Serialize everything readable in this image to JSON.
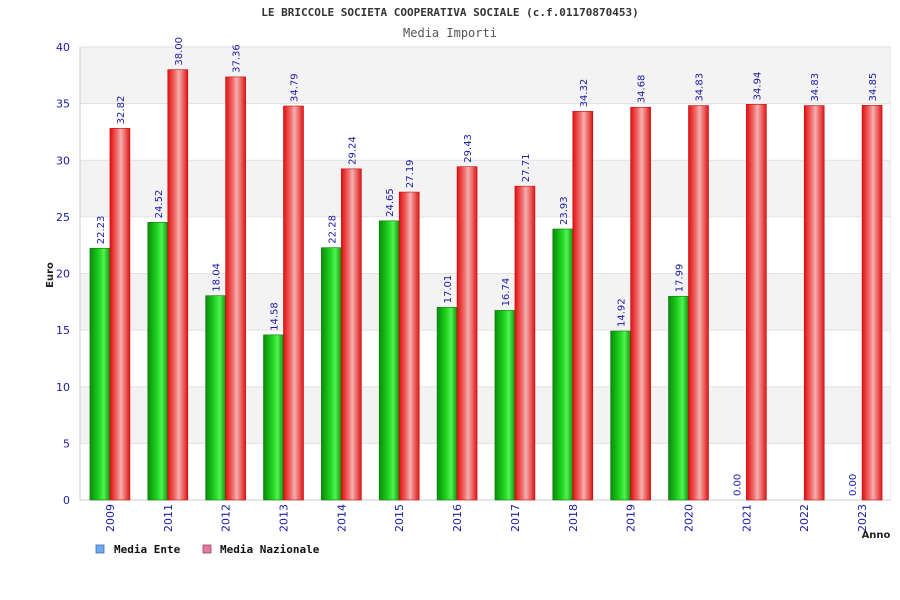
{
  "chart_data": {
    "type": "bar",
    "title": "LE BRICCOLE SOCIETA COOPERATIVA SOCIALE (c.f.01170870453)",
    "subtitle": "Media Importi",
    "xlabel": "Anno",
    "ylabel": "Euro",
    "ylim": [
      0,
      40
    ],
    "yticks": [
      0,
      5,
      10,
      15,
      20,
      25,
      30,
      35,
      40
    ],
    "grid": true,
    "legend_position": "bottom-left",
    "categories": [
      "2009",
      "2011",
      "2012",
      "2013",
      "2014",
      "2015",
      "2016",
      "2017",
      "2018",
      "2019",
      "2020",
      "2021",
      "2022",
      "2023"
    ],
    "series": [
      {
        "name": "Media Ente",
        "legend_color": "#6fa8f0",
        "bar_color": "#16b316",
        "values": [
          22.23,
          24.52,
          18.04,
          14.58,
          22.28,
          24.65,
          17.01,
          16.74,
          23.93,
          14.92,
          17.99,
          0.0,
          null,
          0.0
        ],
        "labels": [
          "22.23",
          "24.52",
          "18.04",
          "14.58",
          "22.28",
          "24.65",
          "17.01",
          "16.74",
          "23.93",
          "14.92",
          "17.99",
          "0.00",
          "",
          "0.00"
        ]
      },
      {
        "name": "Media Nazionale",
        "legend_color": "#e07aa0",
        "bar_color": "#ee2a2a",
        "values": [
          32.82,
          38.0,
          37.36,
          34.79,
          29.24,
          27.19,
          29.43,
          27.71,
          34.32,
          34.68,
          34.83,
          34.94,
          34.83,
          34.85
        ],
        "labels": [
          "32.82",
          "38.00",
          "37.36",
          "34.79",
          "29.24",
          "27.19",
          "29.43",
          "27.71",
          "34.32",
          "34.68",
          "34.83",
          "34.94",
          "34.83",
          "34.85"
        ]
      }
    ]
  }
}
